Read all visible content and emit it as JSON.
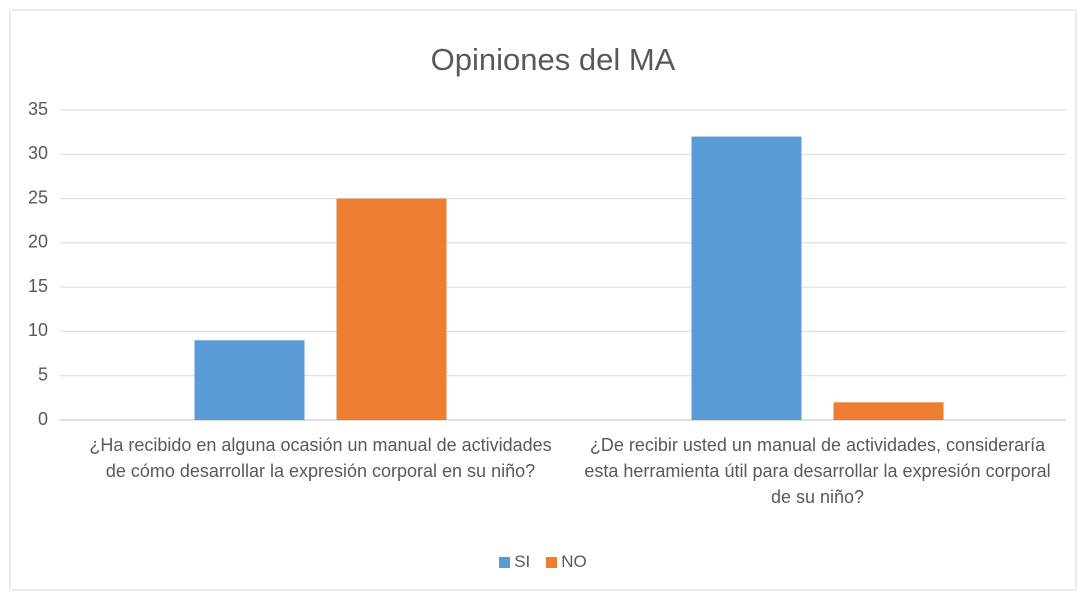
{
  "chart_data": {
    "type": "bar",
    "title": "Opiniones del MA",
    "categories": [
      "¿Ha recibido en alguna ocasión un manual de actividades de cómo desarrollar la expresión corporal en su niño?",
      "¿De recibir usted un manual de actividades, consideraría esta herramienta útil para desarrollar la expresión corporal de su niño?"
    ],
    "series": [
      {
        "name": "SI",
        "color": "#5b9bd5",
        "values": [
          9,
          32
        ]
      },
      {
        "name": "NO",
        "color": "#ed7d31",
        "values": [
          25,
          2
        ]
      }
    ],
    "ylim": [
      0,
      35
    ],
    "yticks": [
      0,
      5,
      10,
      15,
      20,
      25,
      30,
      35
    ],
    "grid": true,
    "legend": "bottom"
  }
}
